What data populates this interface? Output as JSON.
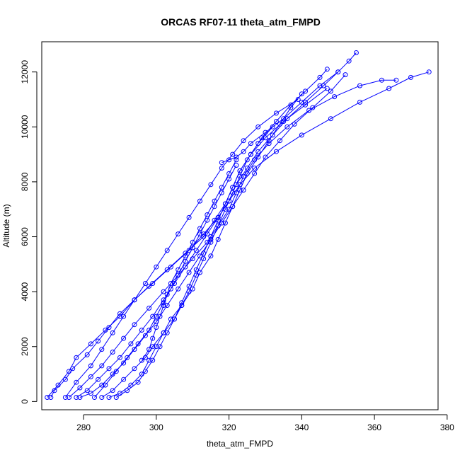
{
  "chart_data": {
    "type": "line",
    "title": "ORCAS RF07-11 theta_atm_FMPD",
    "xlabel": "theta_atm_FMPD",
    "ylabel": "Altitude (m)",
    "xlim": [
      268.5,
      377.5
    ],
    "ylim": [
      -300,
      13100
    ],
    "xticks": [
      280,
      300,
      320,
      340,
      360,
      380
    ],
    "yticks": [
      0,
      2000,
      4000,
      6000,
      8000,
      10000,
      12000
    ],
    "grid": false,
    "legend": "none",
    "marker": "open-circle",
    "color": "#0000ff",
    "series": [
      {
        "x": [
          271,
          272,
          275,
          277,
          281,
          284,
          287,
          290,
          294,
          298,
          303,
          308,
          313,
          316,
          319,
          321,
          323,
          326,
          329,
          333,
          337,
          341,
          345,
          347
        ],
        "y": [
          150,
          400,
          800,
          1200,
          1700,
          2200,
          2700,
          3200,
          3700,
          4200,
          4800,
          5400,
          6000,
          6600,
          7200,
          7800,
          8400,
          9000,
          9600,
          10200,
          10800,
          11300,
          11800,
          12100
        ]
      },
      {
        "x": [
          270,
          273,
          276,
          278,
          282,
          286,
          290,
          294,
          299,
          304,
          309,
          313,
          317,
          320,
          322,
          325,
          328,
          332,
          336,
          341,
          346,
          350,
          353,
          355
        ],
        "y": [
          150,
          600,
          1100,
          1600,
          2100,
          2600,
          3100,
          3700,
          4300,
          4900,
          5500,
          6100,
          6700,
          7300,
          7900,
          8500,
          9100,
          9700,
          10300,
          10900,
          11500,
          12000,
          12400,
          12700
        ]
      },
      {
        "x": [
          276,
          279,
          282,
          285,
          288,
          291,
          294,
          298,
          302,
          306,
          310,
          314,
          317,
          320,
          322,
          324,
          327,
          331,
          336,
          342,
          349,
          356,
          362,
          366
        ],
        "y": [
          150,
          500,
          900,
          1300,
          1800,
          2300,
          2800,
          3400,
          4000,
          4600,
          5200,
          5800,
          6400,
          7000,
          7600,
          8200,
          8800,
          9400,
          10000,
          10600,
          11100,
          11500,
          11700,
          11700
        ]
      },
      {
        "x": [
          278,
          281,
          284,
          287,
          290,
          293,
          296,
          299,
          302,
          305,
          308,
          311,
          314,
          317,
          320,
          323,
          327,
          333,
          340,
          348,
          356,
          364,
          370,
          375
        ],
        "y": [
          150,
          400,
          800,
          1200,
          1600,
          2100,
          2600,
          3100,
          3700,
          4300,
          4900,
          5500,
          6100,
          6700,
          7300,
          7900,
          8500,
          9100,
          9700,
          10300,
          10900,
          11400,
          11800,
          12000
        ]
      },
      {
        "x": [
          285,
          288,
          291,
          294,
          297,
          299,
          302,
          304,
          307,
          310,
          312,
          315,
          317,
          319,
          321,
          323,
          325,
          328,
          331,
          334,
          337,
          340
        ],
        "y": [
          150,
          400,
          800,
          1200,
          1600,
          2000,
          2500,
          3000,
          3500,
          4100,
          4700,
          5300,
          5900,
          6500,
          7100,
          7700,
          8300,
          8900,
          9500,
          10100,
          10700,
          11200
        ]
      },
      {
        "x": [
          287,
          290,
          293,
          296,
          298,
          300,
          302,
          305,
          307,
          309,
          311,
          313,
          315,
          317,
          319,
          321,
          323,
          326,
          330,
          335,
          341,
          347
        ],
        "y": [
          150,
          300,
          600,
          1000,
          1500,
          2000,
          2500,
          3000,
          3600,
          4200,
          4800,
          5400,
          6000,
          6600,
          7200,
          7800,
          8400,
          9000,
          9600,
          10200,
          10800,
          11400
        ]
      },
      {
        "x": [
          289,
          292,
          295,
          297,
          299,
          301,
          303,
          305,
          307,
          309,
          311,
          313,
          315,
          317,
          319,
          321,
          323,
          325,
          328,
          332
        ],
        "y": [
          150,
          400,
          700,
          1100,
          1500,
          2000,
          2500,
          3000,
          3500,
          4000,
          4600,
          5200,
          5800,
          6400,
          7000,
          7600,
          8200,
          8800,
          9400,
          10000
        ]
      },
      {
        "x": [
          283,
          286,
          289,
          292,
          295,
          298,
          300,
          302,
          304,
          306,
          308,
          310,
          312,
          314,
          316,
          318,
          320,
          322
        ],
        "y": [
          150,
          600,
          1100,
          1600,
          2100,
          2600,
          3100,
          3600,
          4100,
          4600,
          5100,
          5600,
          6100,
          6600,
          7100,
          7600,
          8100,
          8600
        ]
      },
      {
        "x": [
          275,
          278,
          282,
          285,
          288,
          291,
          294,
          297,
          300,
          303,
          306,
          309,
          312,
          315,
          318,
          321,
          324,
          328,
          333,
          339
        ],
        "y": [
          150,
          700,
          1300,
          1900,
          2500,
          3100,
          3700,
          4300,
          4900,
          5500,
          6100,
          6700,
          7300,
          7900,
          8500,
          9000,
          9500,
          10000,
          10500,
          11000
        ]
      },
      {
        "x": [
          279,
          282,
          285,
          288,
          291,
          294,
          297,
          300,
          303,
          306,
          309,
          312,
          315,
          318,
          321,
          324,
          327,
          330,
          334,
          338,
          343,
          348,
          352
        ],
        "y": [
          150,
          300,
          600,
          1000,
          1400,
          1900,
          2400,
          2900,
          3500,
          4100,
          4700,
          5300,
          5900,
          6500,
          7100,
          7700,
          8300,
          8900,
          9500,
          10100,
          10700,
          11300,
          11900
        ]
      },
      {
        "x": [
          296,
          298,
          299,
          300,
          301,
          302,
          303,
          304,
          306,
          308,
          310,
          312,
          314,
          316,
          318,
          320,
          322
        ],
        "y": [
          1500,
          1900,
          2300,
          2700,
          3100,
          3500,
          3900,
          4300,
          4800,
          5300,
          5800,
          6300,
          6800,
          7300,
          7800,
          8300,
          8800
        ]
      },
      {
        "x": [
          318,
          320,
          322,
          324,
          326,
          330,
          335,
          340,
          345,
          350
        ],
        "y": [
          8700,
          8800,
          8900,
          9100,
          9400,
          9800,
          10300,
          10900,
          11500,
          12000
        ]
      }
    ]
  }
}
